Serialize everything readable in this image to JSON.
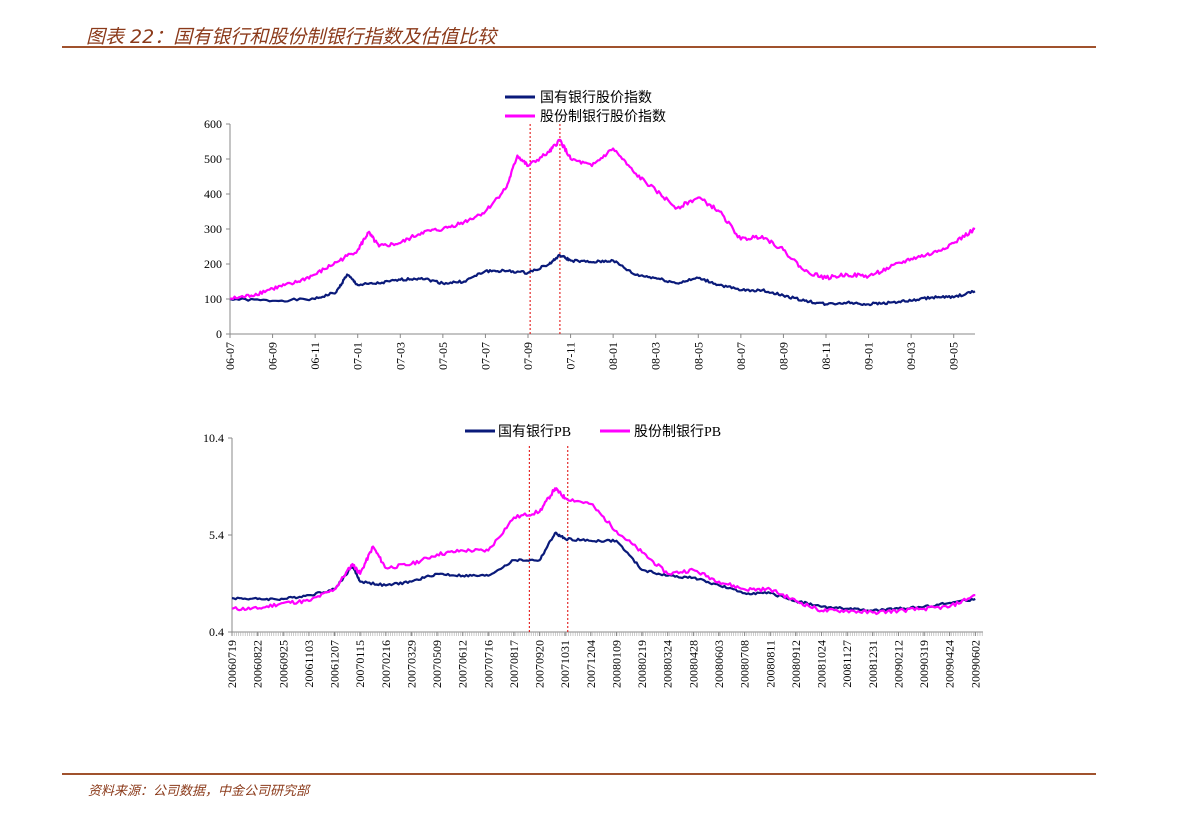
{
  "header": {
    "title": "图表 22：国有银行和股份制银行指数及估值比较"
  },
  "footer": {
    "source": "资料来源：公司数据，中金公司研究部"
  },
  "colors": {
    "navy": "#0a1a7a",
    "magenta": "#ff00ff",
    "marker": "#e00000",
    "rule": "#a0522d"
  },
  "chart_data": [
    {
      "type": "line",
      "title": "",
      "ylim": [
        0,
        600
      ],
      "yticks": [
        "0",
        "100",
        "200",
        "300",
        "400",
        "500",
        "600"
      ],
      "xticks": [
        "06-07",
        "06-09",
        "06-11",
        "07-01",
        "07-03",
        "07-05",
        "07-07",
        "07-09",
        "07-11",
        "08-01",
        "08-03",
        "08-05",
        "08-07",
        "08-09",
        "08-11",
        "09-01",
        "09-03",
        "09-05"
      ],
      "x_unit": "months since 2006-07",
      "markers": [
        14.1,
        15.5
      ],
      "series": [
        {
          "name": "国有银行股价指数",
          "x": [
            0,
            2,
            4,
            5,
            5.5,
            6,
            7,
            8,
            9,
            10,
            11,
            12,
            13,
            14,
            15,
            15.5,
            16,
            17,
            18,
            19,
            20,
            21,
            22,
            23,
            24,
            25,
            26,
            27,
            28,
            29,
            30,
            31,
            32,
            33,
            34,
            35
          ],
          "values": [
            100,
            95,
            100,
            120,
            170,
            140,
            145,
            155,
            160,
            145,
            150,
            180,
            180,
            175,
            200,
            225,
            210,
            205,
            210,
            170,
            160,
            145,
            160,
            140,
            125,
            125,
            110,
            95,
            85,
            90,
            85,
            90,
            95,
            105,
            105,
            122
          ]
        },
        {
          "name": "股份制银行股价指数",
          "x": [
            0,
            1,
            2,
            3,
            4,
            5,
            6,
            6.5,
            7,
            8,
            9,
            10,
            11,
            12,
            13,
            13.5,
            14,
            15,
            15.5,
            16,
            17,
            18,
            19,
            20,
            21,
            22,
            23,
            24,
            25,
            26,
            27,
            28,
            29,
            30,
            31,
            32,
            33,
            34,
            35
          ],
          "values": [
            100,
            110,
            130,
            145,
            170,
            205,
            240,
            290,
            250,
            260,
            290,
            300,
            320,
            350,
            420,
            510,
            480,
            520,
            555,
            500,
            480,
            530,
            460,
            410,
            360,
            390,
            350,
            270,
            280,
            240,
            180,
            160,
            170,
            165,
            190,
            215,
            230,
            260,
            300
          ]
        }
      ]
    },
    {
      "type": "line",
      "title": "",
      "ylim": [
        0.4,
        10.4
      ],
      "yticks": [
        "0.4",
        "5.4",
        "10.4"
      ],
      "xticks": [
        "20060719",
        "20060822",
        "20060925",
        "20061103",
        "20061207",
        "20070115",
        "20070216",
        "20070329",
        "20070509",
        "20070612",
        "20070716",
        "20070817",
        "20070920",
        "20071031",
        "20071204",
        "20080109",
        "20080219",
        "20080324",
        "20080428",
        "20080603",
        "20080708",
        "20080811",
        "20080912",
        "20081024",
        "20081127",
        "20081231",
        "20090212",
        "20090319",
        "20090424",
        "20090602"
      ],
      "markers": [
        11.6,
        13.1
      ],
      "series": [
        {
          "name": "国有银行PB",
          "x": [
            0,
            1,
            2,
            3,
            4,
            4.7,
            5,
            6,
            7,
            8,
            9,
            10,
            11,
            12,
            12.6,
            13,
            14,
            15,
            16,
            17,
            18,
            19,
            20,
            21,
            22,
            23,
            24,
            25,
            26,
            27,
            28,
            29
          ],
          "values": [
            2.15,
            2.1,
            2.1,
            2.3,
            2.6,
            3.8,
            3.0,
            2.8,
            3.0,
            3.4,
            3.3,
            3.3,
            4.1,
            4.1,
            5.5,
            5.2,
            5.1,
            5.1,
            3.6,
            3.3,
            3.2,
            2.8,
            2.4,
            2.4,
            2.0,
            1.7,
            1.6,
            1.5,
            1.6,
            1.7,
            1.9,
            2.1
          ]
        },
        {
          "name": "股份制银行PB",
          "x": [
            0,
            1,
            2,
            3,
            4,
            4.7,
            5,
            5.5,
            6,
            7,
            8,
            9,
            10,
            11,
            12,
            12.6,
            13,
            14,
            15,
            16,
            17,
            18,
            19,
            20,
            21,
            22,
            23,
            24,
            25,
            26,
            27,
            28,
            29
          ],
          "values": [
            1.6,
            1.6,
            1.9,
            2.0,
            2.6,
            3.9,
            3.4,
            4.8,
            3.7,
            3.9,
            4.4,
            4.6,
            4.6,
            6.3,
            6.6,
            7.8,
            7.3,
            7.0,
            5.6,
            4.5,
            3.4,
            3.6,
            3.0,
            2.6,
            2.6,
            2.0,
            1.5,
            1.5,
            1.4,
            1.5,
            1.6,
            1.7,
            2.3
          ]
        }
      ]
    }
  ]
}
